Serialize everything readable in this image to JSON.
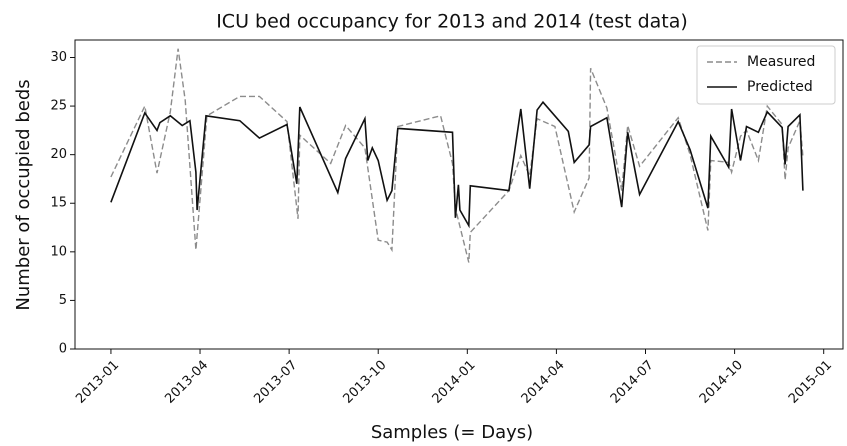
{
  "chart_data": {
    "type": "line",
    "title": "ICU bed occupancy for 2013 and 2014 (test data)",
    "x_label": "Samples (= Days)",
    "y_label": "Number of occupied beds",
    "xlim": [
      -1.21,
      24.65
    ],
    "xticks": [
      {
        "value": 0,
        "label": "2013-01"
      },
      {
        "value": 3,
        "label": "2013-04"
      },
      {
        "value": 6,
        "label": "2013-07"
      },
      {
        "value": 9,
        "label": "2013-10"
      },
      {
        "value": 12,
        "label": "2014-01"
      },
      {
        "value": 15,
        "label": "2014-04"
      },
      {
        "value": 18,
        "label": "2014-07"
      },
      {
        "value": 21,
        "label": "2014-10"
      },
      {
        "value": 24,
        "label": "2015-01"
      }
    ],
    "ylim": [
      0,
      31.8
    ],
    "yticks": [
      0,
      5,
      10,
      15,
      20,
      25,
      30
    ],
    "legend": "upper right",
    "series": [
      {
        "name": "Measured",
        "color": "#8c8c8c",
        "dash": "dashed",
        "x": [
          0,
          1.14,
          1.55,
          2.0,
          2.26,
          2.5,
          2.86,
          3.23,
          4.34,
          5.0,
          5.93,
          6.3,
          6.36,
          7.4,
          7.9,
          8.55,
          9.0,
          9.3,
          9.46,
          9.66,
          11.1,
          11.5,
          11.6,
          12.05,
          12.1,
          13.4,
          13.8,
          14.1,
          14.35,
          14.95,
          15.6,
          16.1,
          16.15,
          16.7,
          17.2,
          17.4,
          17.8,
          19.1,
          19.5,
          20.1,
          20.2,
          20.8,
          20.9,
          21.2,
          21.4,
          21.8,
          22.1,
          22.6,
          22.7,
          22.8,
          23.2,
          23.3
        ],
        "values": [
          17.7,
          25,
          18.1,
          24.4,
          30.9,
          25.6,
          10.2,
          24,
          26,
          26,
          23.4,
          13.4,
          22,
          19.1,
          23,
          20.7,
          11.2,
          11,
          10.2,
          22.9,
          24,
          19.1,
          14.5,
          8.9,
          12,
          16.3,
          19.9,
          17.8,
          23.7,
          22.9,
          14.1,
          17.6,
          28.9,
          24.8,
          16.3,
          23,
          18.8,
          23.8,
          20,
          12.2,
          19.4,
          19.2,
          18.2,
          21.9,
          22.5,
          19.4,
          25,
          23.1,
          17.4,
          20.7,
          23.5,
          19.8
        ]
      },
      {
        "name": "Predicted",
        "color": "#111111",
        "dash": "solid",
        "x": [
          0,
          1.14,
          1.55,
          1.65,
          2.0,
          2.4,
          2.66,
          2.86,
          2.9,
          3.2,
          4.34,
          5.0,
          5.93,
          6.26,
          6.36,
          7.64,
          7.9,
          8.55,
          8.65,
          8.8,
          9.0,
          9.3,
          9.46,
          9.66,
          11.5,
          11.6,
          11.7,
          11.75,
          12.05,
          12.1,
          13.4,
          13.8,
          14.1,
          14.35,
          14.55,
          15.4,
          15.6,
          16.1,
          16.15,
          16.7,
          17.2,
          17.4,
          17.8,
          19.1,
          19.5,
          20.1,
          20.2,
          20.8,
          20.9,
          21.2,
          21.4,
          21.8,
          22.1,
          22.6,
          22.7,
          22.8,
          23.2,
          23.3
        ],
        "values": [
          15.1,
          24.3,
          22.5,
          23.3,
          24,
          23,
          23.5,
          18.2,
          14.3,
          24,
          23.5,
          21.7,
          23.1,
          17,
          24.9,
          16.1,
          19.6,
          23.7,
          19.4,
          20.7,
          19.4,
          15.3,
          16.3,
          22.7,
          22.3,
          13.5,
          16.9,
          14.3,
          12.7,
          16.8,
          16.3,
          24.7,
          16.5,
          24.6,
          25.4,
          22.4,
          19.2,
          21,
          22.9,
          23.8,
          14.6,
          22.3,
          15.9,
          23.4,
          20.5,
          14.5,
          21.9,
          18.7,
          24.7,
          19.4,
          22.9,
          22.3,
          24.4,
          22.8,
          19,
          22.9,
          24.1,
          16.3
        ]
      }
    ]
  }
}
